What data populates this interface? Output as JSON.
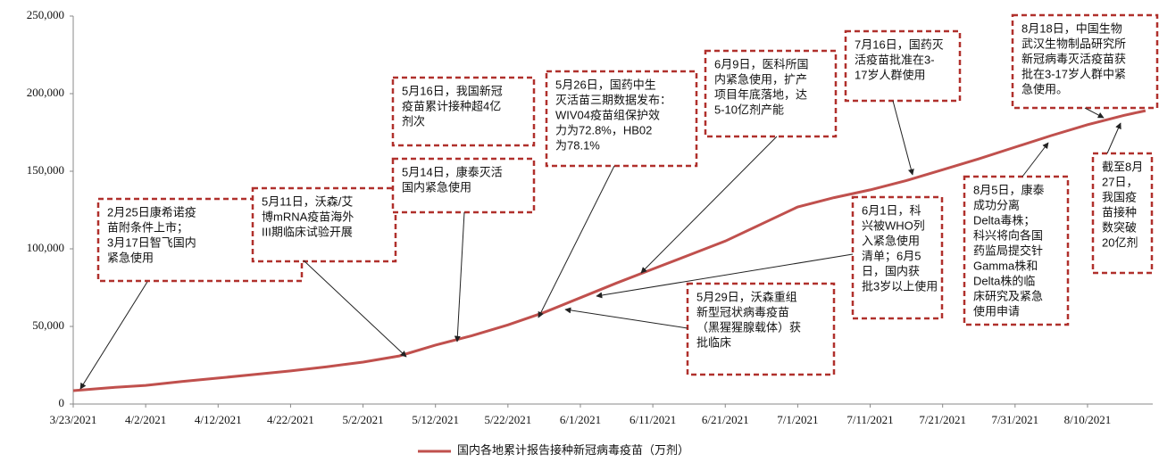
{
  "chart_data": {
    "type": "line",
    "x": [
      "3/23/2021",
      "3/28/2021",
      "4/2/2021",
      "4/7/2021",
      "4/12/2021",
      "4/17/2021",
      "4/22/2021",
      "4/27/2021",
      "5/2/2021",
      "5/7/2021",
      "5/12/2021",
      "5/17/2021",
      "5/22/2021",
      "5/27/2021",
      "6/1/2021",
      "6/6/2021",
      "6/11/2021",
      "6/16/2021",
      "6/21/2021",
      "6/26/2021",
      "7/1/2021",
      "7/6/2021",
      "7/11/2021",
      "7/16/2021",
      "7/21/2021",
      "7/26/2021",
      "7/31/2021",
      "8/5/2021",
      "8/10/2021",
      "8/15/2021",
      "8/18/2021"
    ],
    "series": [
      {
        "name": "国内各地累计报告接种新冠病毒疫苗（万剂）",
        "color": "#c0504d",
        "values": [
          8600,
          10500,
          12000,
          14500,
          16700,
          19000,
          21300,
          24000,
          27000,
          31000,
          38000,
          44000,
          51000,
          59000,
          68500,
          78000,
          87000,
          96000,
          105000,
          116000,
          127000,
          133000,
          138000,
          144000,
          151000,
          158000,
          165500,
          173000,
          180000,
          186000,
          189000
        ]
      }
    ],
    "xlim": [
      "3/23/2021",
      "8/19/2021"
    ],
    "xticks": [
      "3/23/2021",
      "4/2/2021",
      "4/12/2021",
      "4/22/2021",
      "5/2/2021",
      "5/12/2021",
      "5/22/2021",
      "6/1/2021",
      "6/11/2021",
      "6/21/2021",
      "7/1/2021",
      "7/11/2021",
      "7/21/2021",
      "7/31/2021",
      "8/10/2021"
    ],
    "ylim": [
      0,
      250000
    ],
    "yticks": [
      0,
      {
        "value": 50000,
        "label": "50,000"
      },
      {
        "value": 100000,
        "label": "100,000"
      },
      {
        "value": 150000,
        "label": "150,000"
      },
      {
        "value": 200000,
        "label": "200,000"
      },
      {
        "value": 250000,
        "label": "250,000"
      }
    ],
    "legend": "bottom",
    "annotations": [
      {
        "lines": [
          "2月25日康希诺疫",
          "苗附条件上市；",
          "3月17日智飞国内",
          "紧急使用"
        ]
      },
      {
        "lines": [
          "5月11日，沃森/艾",
          "博mRNA疫苗海外",
          "III期临床试验开展"
        ]
      },
      {
        "lines": [
          "5月16日，我国新冠",
          "疫苗累计接种超4亿",
          "剂次"
        ]
      },
      {
        "lines": [
          "5月14日，康泰灭活",
          "国内紧急使用"
        ]
      },
      {
        "lines": [
          "5月26日，国药中生",
          "灭活苗三期数据发布：",
          "WIV04疫苗组保护效",
          "力为72.8%，HB02",
          "为78.1%"
        ]
      },
      {
        "lines": [
          "6月9日，医科所国",
          "内紧急使用，扩产",
          "项目年底落地，达",
          "5-10亿剂产能"
        ]
      },
      {
        "lines": [
          "7月16日，国药灭",
          "活疫苗批准在3-",
          "17岁人群使用"
        ]
      },
      {
        "lines": [
          "8月18日，中国生物",
          "武汉生物制品研究所",
          "新冠病毒灭活疫苗获",
          "批在3-17岁人群中紧",
          "急使用。"
        ]
      },
      {
        "lines": [
          "6月1日，科",
          "兴被WHO列",
          "入紧急使用",
          "清单；6月5",
          "日，国内获",
          "批3岁以上使用"
        ]
      },
      {
        "lines": [
          "5月29日，沃森重组",
          "新型冠状病毒疫苗",
          "（黑猩猩腺载体）获",
          "批临床"
        ]
      },
      {
        "lines": [
          "8月5日，康泰",
          "成功分离",
          "Delta毒株；",
          "科兴将向各国",
          "药监局提交针",
          "Gamma株和",
          "Delta株的临",
          "床研究及紧急",
          "使用申请"
        ]
      },
      {
        "lines": [
          "截至8月",
          "27日，",
          "我国疫",
          "苗接种",
          "数突破",
          "20亿剂"
        ]
      }
    ]
  }
}
